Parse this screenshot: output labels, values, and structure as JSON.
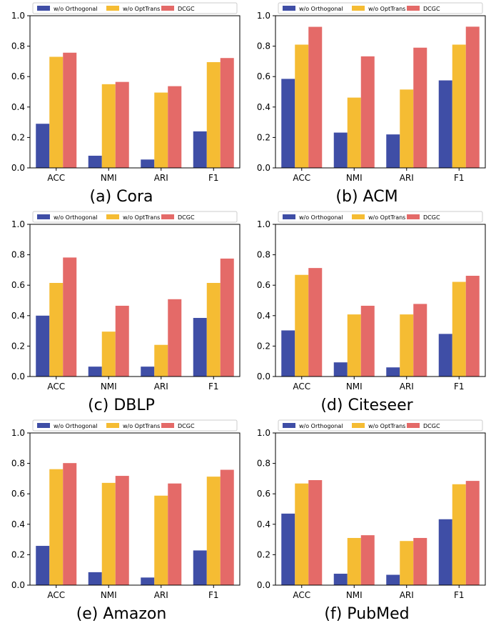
{
  "legend": {
    "labels": [
      "w/o Orthogonal",
      "w/o OptTrans",
      "DCGC"
    ],
    "colors": [
      "#3f4ea6",
      "#f5bc33",
      "#e46a68"
    ],
    "placement": "top"
  },
  "chart_data": [
    {
      "type": "bar",
      "title": "(a) Cora",
      "categories": [
        "ACC",
        "NMI",
        "ARI",
        "F1"
      ],
      "series": [
        {
          "name": "w/o Orthogonal",
          "values": [
            0.29,
            0.08,
            0.055,
            0.24
          ]
        },
        {
          "name": "w/o OptTrans",
          "values": [
            0.73,
            0.55,
            0.495,
            0.695
          ]
        },
        {
          "name": "DCGC",
          "values": [
            0.757,
            0.565,
            0.537,
            0.722
          ]
        }
      ],
      "ylim": [
        0,
        1.0
      ],
      "yticks": [
        "0.0",
        "0.2",
        "0.4",
        "0.6",
        "0.8",
        "1.0"
      ]
    },
    {
      "type": "bar",
      "title": "(b) ACM",
      "categories": [
        "ACC",
        "NMI",
        "ARI",
        "F1"
      ],
      "series": [
        {
          "name": "w/o Orthogonal",
          "values": [
            0.585,
            0.232,
            0.22,
            0.575
          ]
        },
        {
          "name": "w/o OptTrans",
          "values": [
            0.81,
            0.462,
            0.515,
            0.81
          ]
        },
        {
          "name": "DCGC",
          "values": [
            0.927,
            0.733,
            0.79,
            0.928
          ]
        }
      ],
      "ylim": [
        0,
        1.0
      ],
      "yticks": [
        "0.0",
        "0.2",
        "0.4",
        "0.6",
        "0.8",
        "1.0"
      ]
    },
    {
      "type": "bar",
      "title": "(c) DBLP",
      "categories": [
        "ACC",
        "NMI",
        "ARI",
        "F1"
      ],
      "series": [
        {
          "name": "w/o Orthogonal",
          "values": [
            0.4,
            0.065,
            0.065,
            0.385
          ]
        },
        {
          "name": "w/o OptTrans",
          "values": [
            0.615,
            0.295,
            0.208,
            0.615
          ]
        },
        {
          "name": "DCGC",
          "values": [
            0.782,
            0.465,
            0.508,
            0.775
          ]
        }
      ],
      "ylim": [
        0,
        1.0
      ],
      "yticks": [
        "0.0",
        "0.2",
        "0.4",
        "0.6",
        "0.8",
        "1.0"
      ]
    },
    {
      "type": "bar",
      "title": "(d) Citeseer",
      "categories": [
        "ACC",
        "NMI",
        "ARI",
        "F1"
      ],
      "series": [
        {
          "name": "w/o Orthogonal",
          "values": [
            0.303,
            0.093,
            0.06,
            0.28
          ]
        },
        {
          "name": "w/o OptTrans",
          "values": [
            0.668,
            0.408,
            0.408,
            0.622
          ]
        },
        {
          "name": "DCGC",
          "values": [
            0.713,
            0.465,
            0.477,
            0.662
          ]
        }
      ],
      "ylim": [
        0,
        1.0
      ],
      "yticks": [
        "0.0",
        "0.2",
        "0.4",
        "0.6",
        "0.8",
        "1.0"
      ]
    },
    {
      "type": "bar",
      "title": "(e) Amazon",
      "categories": [
        "ACC",
        "NMI",
        "ARI",
        "F1"
      ],
      "series": [
        {
          "name": "w/o Orthogonal",
          "values": [
            0.258,
            0.085,
            0.05,
            0.228
          ]
        },
        {
          "name": "w/o OptTrans",
          "values": [
            0.762,
            0.672,
            0.588,
            0.713
          ]
        },
        {
          "name": "DCGC",
          "values": [
            0.802,
            0.718,
            0.668,
            0.758
          ]
        }
      ],
      "ylim": [
        0,
        1.0
      ],
      "yticks": [
        "0.0",
        "0.2",
        "0.4",
        "0.6",
        "0.8",
        "1.0"
      ]
    },
    {
      "type": "bar",
      "title": "(f) PubMed",
      "categories": [
        "ACC",
        "NMI",
        "ARI",
        "F1"
      ],
      "series": [
        {
          "name": "w/o Orthogonal",
          "values": [
            0.47,
            0.075,
            0.068,
            0.433
          ]
        },
        {
          "name": "w/o OptTrans",
          "values": [
            0.668,
            0.31,
            0.29,
            0.663
          ]
        },
        {
          "name": "DCGC",
          "values": [
            0.69,
            0.328,
            0.31,
            0.685
          ]
        }
      ],
      "ylim": [
        0,
        1.0
      ],
      "yticks": [
        "0.0",
        "0.2",
        "0.4",
        "0.6",
        "0.8",
        "1.0"
      ]
    }
  ]
}
